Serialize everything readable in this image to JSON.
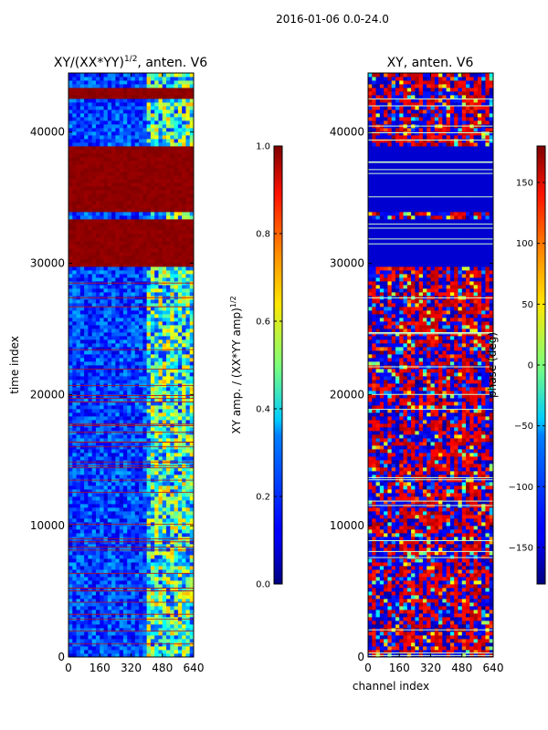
{
  "suptitle": "2016-01-06 0.0-24.0",
  "chart_data": [
    {
      "type": "heatmap",
      "title_main": "XY/(XX*YY)",
      "title_sup": "1/2",
      "title_rest": ", anten. V6",
      "xlabel": "",
      "ylabel": "time index",
      "xlim": [
        0,
        640
      ],
      "ylim": [
        0,
        44500
      ],
      "xticks": [
        0,
        160,
        320,
        480,
        640
      ],
      "xtick_labels": [
        "0",
        "160",
        "320",
        "480",
        "640"
      ],
      "yticks": [
        0,
        10000,
        20000,
        30000,
        40000
      ],
      "ytick_labels": [
        "0",
        "10000",
        "20000",
        "30000",
        "40000"
      ],
      "colormap": "jet",
      "colorbar": {
        "label_main": "XY amp. / (XX*YY amp)",
        "label_sup": "1/2",
        "range": [
          0.0,
          1.0
        ],
        "ticks": [
          0.0,
          0.2,
          0.4,
          0.6,
          0.8,
          1.0
        ],
        "tick_labels": [
          "0.0",
          "0.2",
          "0.4",
          "0.6",
          "0.8",
          "1.0"
        ]
      },
      "saturated_bands": [
        [
          29800,
          33500
        ],
        [
          33800,
          39000
        ],
        [
          42500,
          43500
        ]
      ],
      "bright_channel_range": [
        410,
        640
      ]
    },
    {
      "type": "heatmap",
      "title": "XY, anten. V6",
      "xlabel": "channel index",
      "ylabel": "",
      "xlim": [
        0,
        640
      ],
      "ylim": [
        0,
        44500
      ],
      "xticks": [
        0,
        160,
        320,
        480,
        640
      ],
      "xtick_labels": [
        "0",
        "160",
        "320",
        "480",
        "640"
      ],
      "yticks": [
        0,
        10000,
        20000,
        30000,
        40000
      ],
      "ytick_labels": [
        "0",
        "10000",
        "20000",
        "30000",
        "40000"
      ],
      "colormap": "jet",
      "colorbar": {
        "label": "phase (deg)",
        "range": [
          -180,
          180
        ],
        "ticks": [
          -150,
          -100,
          -50,
          0,
          50,
          100,
          150
        ],
        "tick_labels": [
          "−150",
          "−100",
          "−50",
          "0",
          "50",
          "100",
          "150"
        ]
      },
      "flat_bands": [
        [
          29800,
          33500
        ],
        [
          33800,
          39000
        ]
      ]
    }
  ]
}
